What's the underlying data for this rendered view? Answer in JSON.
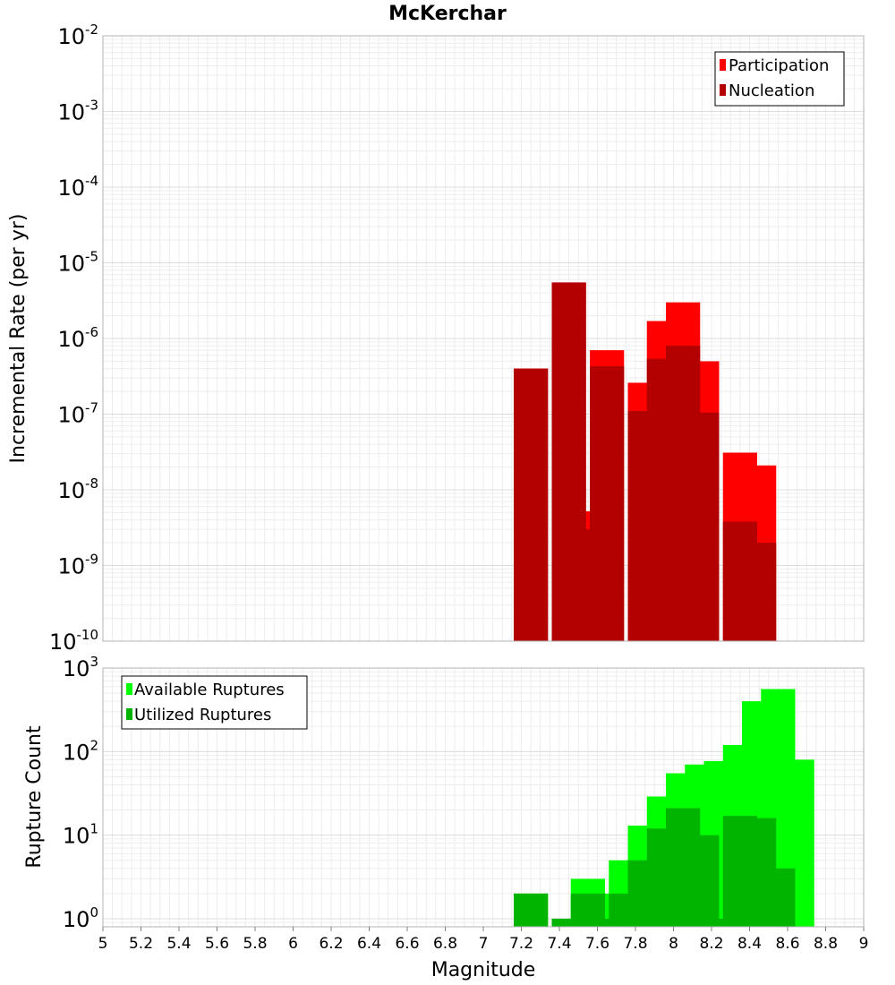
{
  "chart_data": [
    {
      "type": "bar",
      "title": "McKerchar",
      "xlabel": "",
      "ylabel": "Incremental Rate (per yr)",
      "yscale": "log",
      "ylim": [
        1e-10,
        0.01
      ],
      "xlim": [
        5,
        9
      ],
      "y_ticks": [
        {
          "base": "10",
          "exp": "-10"
        },
        {
          "base": "10",
          "exp": "-9"
        },
        {
          "base": "10",
          "exp": "-8"
        },
        {
          "base": "10",
          "exp": "-7"
        },
        {
          "base": "10",
          "exp": "-6"
        },
        {
          "base": "10",
          "exp": "-5"
        },
        {
          "base": "10",
          "exp": "-4"
        },
        {
          "base": "10",
          "exp": "-3"
        },
        {
          "base": "10",
          "exp": "-2"
        }
      ],
      "grid": true,
      "legend_position": "top-right",
      "series": [
        {
          "name": "Participation",
          "color": "#ff0000",
          "points": [
            {
              "x": 7.25,
              "y": 4e-07
            },
            {
              "x": 7.45,
              "y": 5.5e-06
            },
            {
              "x": 7.55,
              "y": 5.2e-09
            },
            {
              "x": 7.65,
              "y": 7e-07
            },
            {
              "x": 7.85,
              "y": 2.6e-07
            },
            {
              "x": 7.95,
              "y": 1.7e-06
            },
            {
              "x": 8.05,
              "y": 3e-06
            },
            {
              "x": 8.15,
              "y": 5e-07
            },
            {
              "x": 8.35,
              "y": 3.1e-08
            },
            {
              "x": 8.45,
              "y": 2.1e-08
            }
          ]
        },
        {
          "name": "Nucleation",
          "color": "#b30000",
          "points": [
            {
              "x": 7.25,
              "y": 4e-07
            },
            {
              "x": 7.45,
              "y": 5.5e-06
            },
            {
              "x": 7.55,
              "y": 3e-09
            },
            {
              "x": 7.65,
              "y": 4.3e-07
            },
            {
              "x": 7.85,
              "y": 1.1e-07
            },
            {
              "x": 7.95,
              "y": 5.4e-07
            },
            {
              "x": 8.05,
              "y": 8e-07
            },
            {
              "x": 8.15,
              "y": 1.05e-07
            },
            {
              "x": 8.35,
              "y": 3.8e-09
            },
            {
              "x": 8.45,
              "y": 2e-09
            }
          ]
        }
      ]
    },
    {
      "type": "bar",
      "title": "",
      "xlabel": "Magnitude",
      "ylabel": "Rupture Count",
      "yscale": "log",
      "ylim": [
        0.8,
        1000
      ],
      "xlim": [
        5,
        9
      ],
      "x_ticks": [
        "5",
        "5.2",
        "5.4",
        "5.6",
        "5.8",
        "6",
        "6.2",
        "6.4",
        "6.6",
        "6.8",
        "7",
        "7.2",
        "7.4",
        "7.6",
        "7.8",
        "8",
        "8.2",
        "8.4",
        "8.6",
        "8.8",
        "9"
      ],
      "y_ticks": [
        {
          "base": "10",
          "exp": "0"
        },
        {
          "base": "10",
          "exp": "1"
        },
        {
          "base": "10",
          "exp": "2"
        },
        {
          "base": "10",
          "exp": "3"
        }
      ],
      "grid": true,
      "legend_position": "top-left",
      "series": [
        {
          "name": "Available Ruptures",
          "color": "#00ff00",
          "points": [
            {
              "x": 7.25,
              "y": 2
            },
            {
              "x": 7.45,
              "y": 1
            },
            {
              "x": 7.55,
              "y": 3
            },
            {
              "x": 7.65,
              "y": 2
            },
            {
              "x": 7.75,
              "y": 5
            },
            {
              "x": 7.85,
              "y": 13
            },
            {
              "x": 7.95,
              "y": 29
            },
            {
              "x": 8.05,
              "y": 55
            },
            {
              "x": 8.15,
              "y": 70
            },
            {
              "x": 8.25,
              "y": 77
            },
            {
              "x": 8.35,
              "y": 120
            },
            {
              "x": 8.45,
              "y": 400
            },
            {
              "x": 8.55,
              "y": 560
            },
            {
              "x": 8.65,
              "y": 80
            }
          ]
        },
        {
          "name": "Utilized Ruptures",
          "color": "#00b400",
          "points": [
            {
              "x": 7.25,
              "y": 2
            },
            {
              "x": 7.45,
              "y": 1
            },
            {
              "x": 7.55,
              "y": 2
            },
            {
              "x": 7.65,
              "y": 1
            },
            {
              "x": 7.75,
              "y": 2
            },
            {
              "x": 7.85,
              "y": 5
            },
            {
              "x": 7.95,
              "y": 12
            },
            {
              "x": 8.05,
              "y": 21
            },
            {
              "x": 8.15,
              "y": 10
            },
            {
              "x": 8.25,
              "y": 1
            },
            {
              "x": 8.35,
              "y": 17
            },
            {
              "x": 8.45,
              "y": 16
            },
            {
              "x": 8.55,
              "y": 4
            }
          ]
        }
      ]
    }
  ]
}
